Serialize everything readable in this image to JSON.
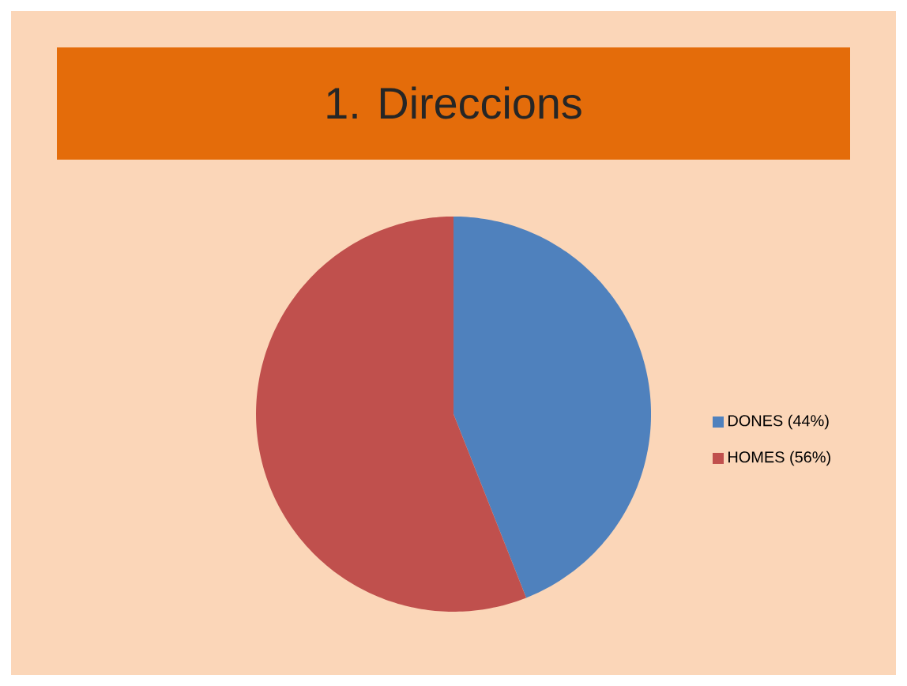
{
  "chart_data": {
    "type": "pie",
    "title": "1. Direccions",
    "categories": [
      "DONES (44%)",
      "HOMES (56%)"
    ],
    "values": [
      44,
      56
    ],
    "colors": [
      "#4f81bd",
      "#c0504d"
    ],
    "legend": "right"
  }
}
